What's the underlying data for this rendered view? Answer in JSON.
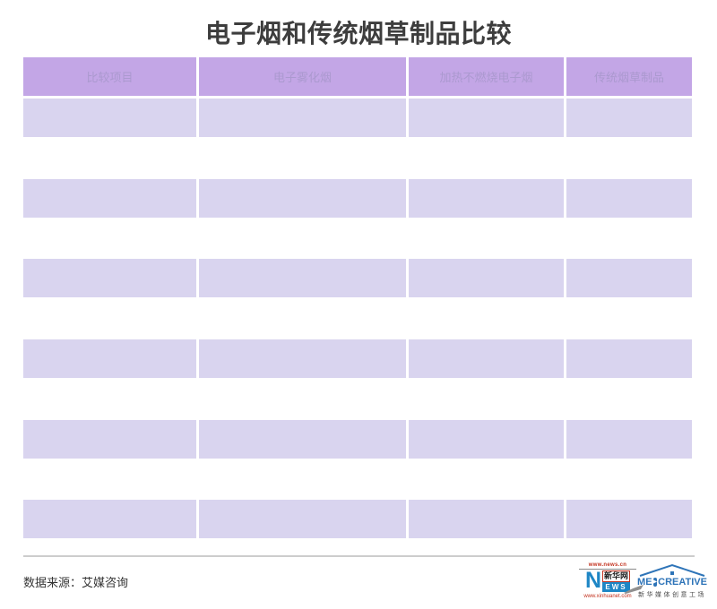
{
  "title": "电子烟和传统烟草制品比较",
  "table": {
    "headers": [
      "比较项目",
      "电子雾化烟",
      "加热不燃烧电子烟",
      "传统烟草制品"
    ],
    "rows": [
      [
        "",
        "",
        "",
        ""
      ],
      [
        "",
        "",
        "",
        ""
      ],
      [
        "",
        "",
        "",
        ""
      ],
      [
        "",
        "",
        "",
        ""
      ],
      [
        "",
        "",
        "",
        ""
      ],
      [
        "",
        "",
        "",
        ""
      ]
    ]
  },
  "chart_data": {
    "type": "table",
    "title": "电子烟和传统烟草制品比较",
    "columns": [
      "比较项目",
      "电子雾化烟",
      "加热不燃烧电子烟",
      "传统烟草制品"
    ],
    "rows": [
      [
        "",
        "",
        "",
        ""
      ],
      [
        "",
        "",
        "",
        ""
      ],
      [
        "",
        "",
        "",
        ""
      ],
      [
        "",
        "",
        "",
        ""
      ],
      [
        "",
        "",
        "",
        ""
      ],
      [
        "",
        "",
        "",
        ""
      ]
    ],
    "source": "数据来源：艾媒咨询"
  },
  "footer": {
    "source": "数据来源：艾媒咨询"
  },
  "logos": {
    "xinhua": {
      "top_url": "www.news.cn",
      "initial": "N",
      "name_cn": "新华网",
      "name_rest": "EWS",
      "bottom_url": "www.xinhuanet.com"
    },
    "medcreative": {
      "word_pre": "ME",
      "play_icon": "▶",
      "word_post": "CREATIVE",
      "subtitle_cn": "新华媒体创意工场"
    }
  },
  "colors": {
    "header_bg": "#c3a6e6",
    "header_text": "#ab99cf",
    "row_bg": "#d9d4ef",
    "title_text": "#3d3d3d",
    "divider": "#cdcdcd",
    "xinhua_blue": "#1e86c5",
    "xinhua_red": "#c3321f",
    "medcreative_blue": "#2e74b8"
  }
}
